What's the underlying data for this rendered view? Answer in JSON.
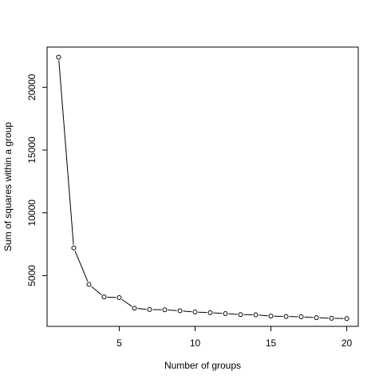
{
  "chart_data": {
    "type": "line",
    "xlabel": "Number of groups",
    "ylabel": "Sum of squares within a group",
    "xlim": [
      0.24,
      20.76
    ],
    "ylim": [
      960,
      23200
    ],
    "x_ticks": [
      5,
      10,
      15,
      20
    ],
    "y_ticks": [
      5000,
      10000,
      15000,
      20000
    ],
    "x_tick_labels": [
      "5",
      "10",
      "15",
      "20"
    ],
    "y_tick_labels": [
      "5000",
      "10000",
      "15000",
      "20000"
    ],
    "grid": false,
    "legend": "none",
    "marker": "open-circle",
    "series": [
      {
        "x": [
          1,
          2,
          3,
          4,
          5,
          6,
          7,
          8,
          9,
          10,
          11,
          12,
          13,
          14,
          15,
          16,
          17,
          18,
          19,
          20
        ],
        "values": [
          22400,
          7200,
          4300,
          3300,
          3250,
          2400,
          2300,
          2280,
          2200,
          2100,
          2050,
          1980,
          1900,
          1880,
          1780,
          1750,
          1720,
          1650,
          1600,
          1580
        ]
      }
    ]
  }
}
